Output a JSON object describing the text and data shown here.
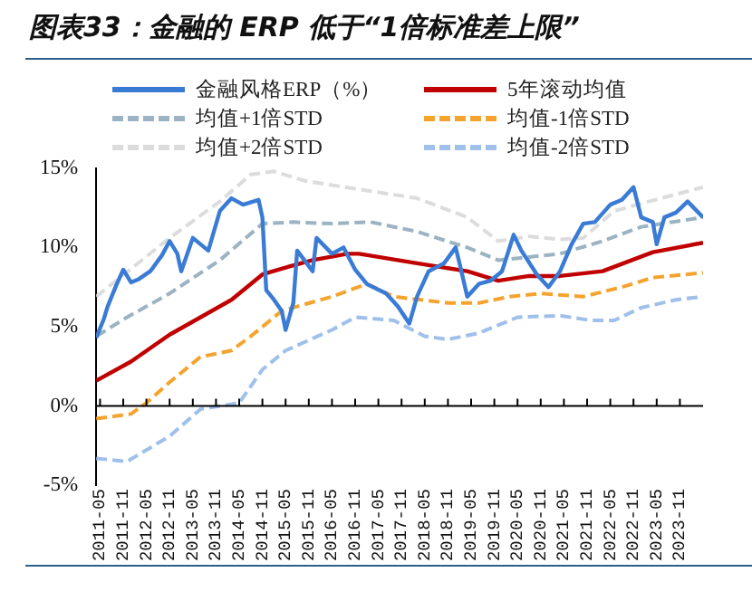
{
  "chart_data": {
    "type": "line",
    "title": "图表33：金融的 ERP 低于“1倍标准差上限”",
    "legend": "top",
    "xlim": [
      "2011-04",
      "2024-05"
    ],
    "xticks": [
      "2011-05",
      "2011-11",
      "2012-05",
      "2012-11",
      "2013-05",
      "2013-11",
      "2014-05",
      "2014-11",
      "2015-05",
      "2015-11",
      "2016-05",
      "2016-11",
      "2017-05",
      "2017-11",
      "2018-05",
      "2018-11",
      "2019-05",
      "2019-11",
      "2020-05",
      "2020-11",
      "2021-05",
      "2021-11",
      "2022-05",
      "2022-11",
      "2023-05",
      "2023-11"
    ],
    "ylim": [
      -5,
      15
    ],
    "yticks": [
      {
        "value": -5,
        "label": "-5%"
      },
      {
        "value": 0,
        "label": "0%"
      },
      {
        "value": 5,
        "label": "5%"
      },
      {
        "value": 10,
        "label": "10%"
      },
      {
        "value": 15,
        "label": "15%"
      }
    ],
    "series": [
      {
        "name": "金融风格ERP（%）",
        "color": "#3a7bd5",
        "line_style": "solid",
        "x": [
          "2011-04",
          "2011-06",
          "2011-07",
          "2011-09",
          "2011-11",
          "2012-01",
          "2012-03",
          "2012-06",
          "2012-09",
          "2012-11",
          "2013-01",
          "2013-02",
          "2013-05",
          "2013-09",
          "2013-12",
          "2014-03",
          "2014-06",
          "2014-10",
          "2014-11",
          "2014-12",
          "2015-02",
          "2015-04",
          "2015-05",
          "2015-07",
          "2015-08",
          "2015-12",
          "2016-01",
          "2016-05",
          "2016-08",
          "2016-11",
          "2017-02",
          "2017-07",
          "2017-10",
          "2018-01",
          "2018-03",
          "2018-06",
          "2018-10",
          "2019-01",
          "2019-02",
          "2019-04",
          "2019-07",
          "2019-10",
          "2020-01",
          "2020-04",
          "2020-06",
          "2020-10",
          "2021-01",
          "2021-04",
          "2021-07",
          "2021-10",
          "2022-01",
          "2022-05",
          "2022-08",
          "2022-11",
          "2023-01",
          "2023-04",
          "2023-05",
          "2023-07",
          "2023-10",
          "2024-01",
          "2024-05"
        ],
        "values": [
          4.3,
          5.5,
          6.3,
          7.5,
          8.6,
          7.8,
          8.0,
          8.5,
          9.5,
          10.4,
          9.6,
          8.5,
          10.6,
          9.8,
          12.3,
          13.1,
          12.7,
          13.0,
          11.9,
          7.3,
          6.7,
          6.0,
          4.8,
          6.5,
          9.8,
          8.5,
          10.6,
          9.6,
          10.0,
          8.6,
          7.7,
          7.1,
          6.3,
          5.2,
          6.9,
          8.5,
          9.0,
          10.0,
          9.0,
          6.9,
          7.7,
          7.9,
          8.5,
          10.8,
          9.8,
          8.3,
          7.5,
          8.5,
          10.2,
          11.5,
          11.6,
          12.7,
          13.0,
          13.8,
          11.9,
          11.6,
          10.2,
          11.9,
          12.2,
          12.9,
          11.9
        ]
      },
      {
        "name": "5年滚动均值",
        "color": "#c00000",
        "line_style": "solid",
        "x": [
          "2011-04",
          "2012-01",
          "2012-11",
          "2013-07",
          "2014-03",
          "2014-11",
          "2015-06",
          "2015-12",
          "2016-09",
          "2016-12",
          "2018-03",
          "2019-04",
          "2019-12",
          "2020-08",
          "2021-04",
          "2022-03",
          "2023-04",
          "2024-05"
        ],
        "values": [
          1.6,
          2.8,
          4.5,
          5.6,
          6.7,
          8.3,
          8.8,
          9.2,
          9.6,
          9.6,
          9.0,
          8.5,
          7.9,
          8.2,
          8.2,
          8.5,
          9.7,
          10.3
        ]
      },
      {
        "name": "均值+1倍STD",
        "color": "#9bb3c3",
        "line_style": "dashed",
        "x": [
          "2011-04",
          "2011-12",
          "2012-11",
          "2013-12",
          "2014-11",
          "2015-07",
          "2016-05",
          "2017-03",
          "2018-03",
          "2019-04",
          "2019-12",
          "2020-08",
          "2021-04",
          "2022-03",
          "2023-01",
          "2024-05"
        ],
        "values": [
          4.4,
          5.6,
          7.1,
          9.2,
          11.5,
          11.6,
          11.5,
          11.6,
          11.0,
          10.0,
          9.2,
          9.4,
          9.6,
          10.4,
          11.3,
          11.9
        ]
      },
      {
        "name": "均值-1倍STD",
        "color": "#f5a32f",
        "line_style": "dashed",
        "x": [
          "2011-04",
          "2012-01",
          "2012-05",
          "2012-11",
          "2013-07",
          "2014-03",
          "2014-08",
          "2015-04",
          "2016-05",
          "2017-02",
          "2017-09",
          "2018-11",
          "2019-07",
          "2020-03",
          "2020-11",
          "2021-10",
          "2022-08",
          "2023-04",
          "2024-05"
        ],
        "values": [
          -0.8,
          -0.5,
          0.2,
          1.5,
          3.1,
          3.5,
          4.4,
          6.0,
          6.9,
          7.7,
          6.9,
          6.5,
          6.5,
          6.9,
          7.1,
          6.9,
          7.5,
          8.1,
          8.4
        ]
      },
      {
        "name": "均值+2倍STD",
        "color": "#dcdcdc",
        "line_style": "dashed",
        "x": [
          "2011-04",
          "2012-11",
          "2013-12",
          "2014-08",
          "2015-02",
          "2015-10",
          "2016-11",
          "2018-03",
          "2019-04",
          "2019-12",
          "2020-08",
          "2021-04",
          "2021-10",
          "2022-06",
          "2023-03",
          "2024-05"
        ],
        "values": [
          6.9,
          10.6,
          12.9,
          14.6,
          14.8,
          14.2,
          13.7,
          13.1,
          11.9,
          10.4,
          10.7,
          10.5,
          10.6,
          12.3,
          12.9,
          13.8
        ]
      },
      {
        "name": "均值-2倍STD",
        "color": "#9fc0ea",
        "line_style": "dashed",
        "x": [
          "2011-04",
          "2011-12",
          "2012-11",
          "2013-07",
          "2014-05",
          "2014-11",
          "2015-05",
          "2016-05",
          "2016-11",
          "2017-09",
          "2018-05",
          "2018-11",
          "2019-07",
          "2020-05",
          "2021-04",
          "2021-12",
          "2022-06",
          "2023-01",
          "2023-10",
          "2024-05"
        ],
        "values": [
          -3.3,
          -3.5,
          -1.9,
          -0.2,
          0.2,
          2.3,
          3.5,
          4.8,
          5.6,
          5.4,
          4.4,
          4.2,
          4.6,
          5.6,
          5.7,
          5.4,
          5.4,
          6.2,
          6.7,
          6.9
        ]
      }
    ]
  }
}
